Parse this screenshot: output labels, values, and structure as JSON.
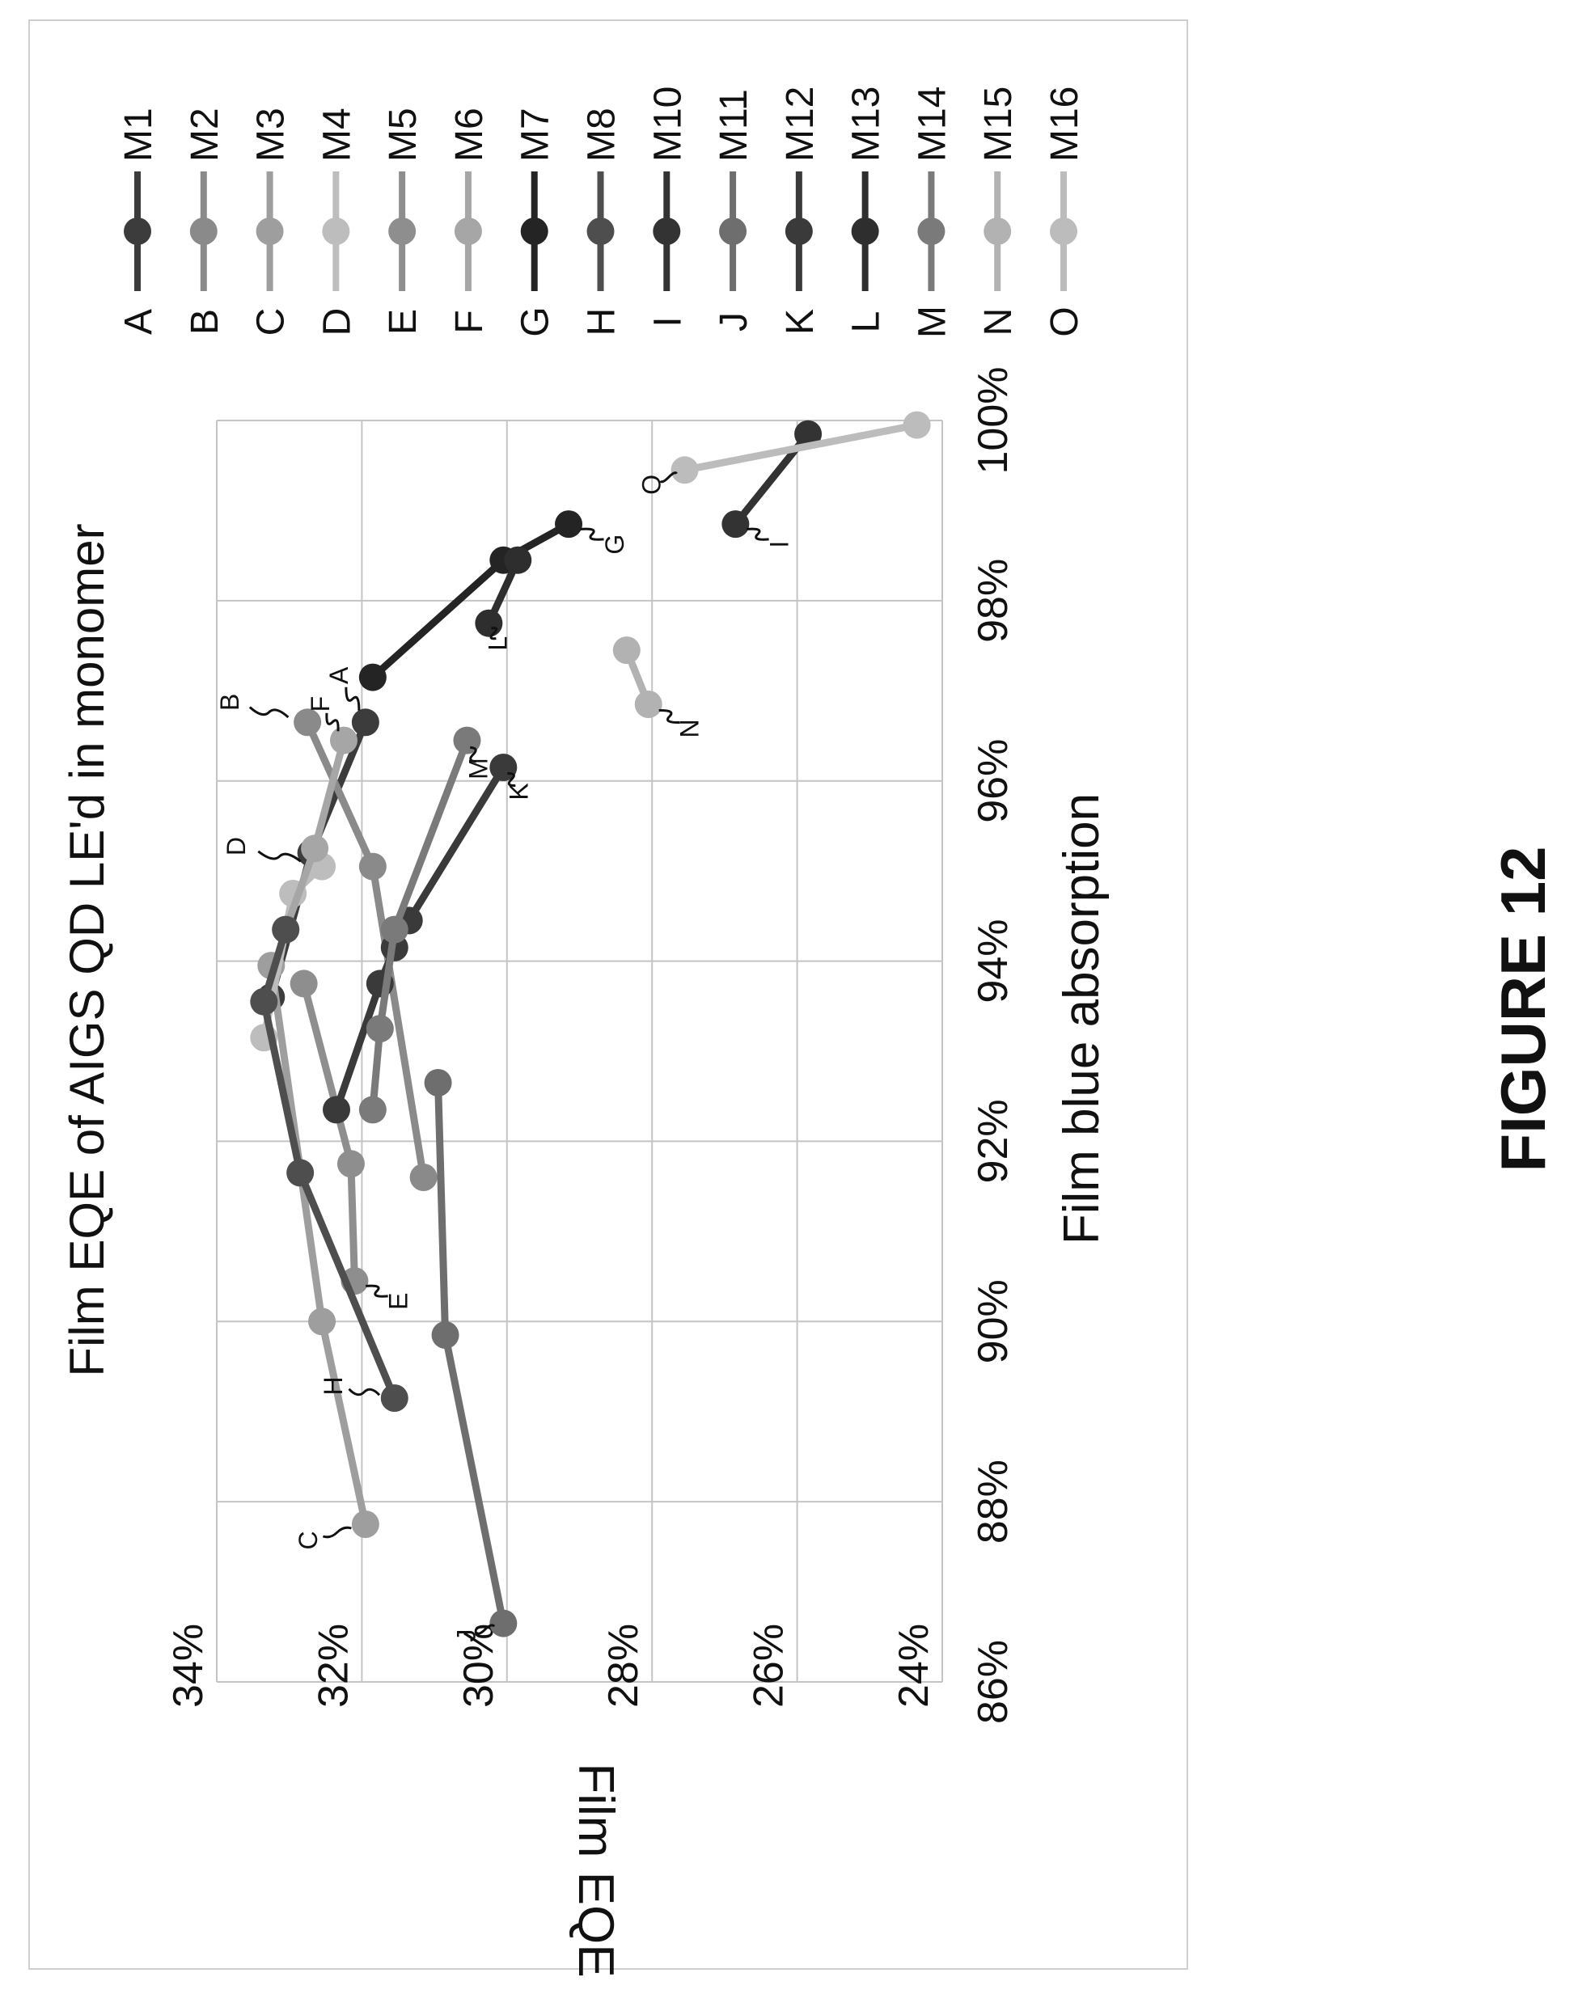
{
  "chart_data": {
    "type": "line",
    "title": "Film EQE of AIGS QD LE'd in monomer",
    "xlabel": "Film blue absorption",
    "ylabel": "Film EQE",
    "xlim": [
      0.86,
      1.0
    ],
    "ylim": [
      0.24,
      0.34
    ],
    "x_ticks": [
      "86%",
      "88%",
      "90%",
      "92%",
      "94%",
      "96%",
      "98%",
      "100%"
    ],
    "y_ticks": [
      "24%",
      "26%",
      "28%",
      "30%",
      "32%",
      "34%"
    ],
    "grid": true,
    "legend_position": "right",
    "series": [
      {
        "letter": "A",
        "name": "M1",
        "color": "#3c3c3c",
        "x": [
          0.9665,
          0.952,
          0.936
        ],
        "y": [
          0.3195,
          0.327,
          0.3325
        ]
      },
      {
        "letter": "B",
        "name": "M2",
        "color": "#8a8a8a",
        "x": [
          0.9665,
          0.9505,
          0.916
        ],
        "y": [
          0.3275,
          0.3185,
          0.3115
        ]
      },
      {
        "letter": "C",
        "name": "M3",
        "color": "#9e9e9e",
        "x": [
          0.8775,
          0.9,
          0.9395
        ],
        "y": [
          0.3195,
          0.3255,
          0.3325
        ]
      },
      {
        "letter": "D",
        "name": "M4",
        "color": "#bdbdbd",
        "x": [
          0.9505,
          0.9475,
          0.9315
        ],
        "y": [
          0.3255,
          0.3295,
          0.3335
        ]
      },
      {
        "letter": "E",
        "name": "M5",
        "color": "#8e8e8e",
        "x": [
          0.9045,
          0.9175,
          0.9375
        ],
        "y": [
          0.321,
          0.3215,
          0.328
        ]
      },
      {
        "letter": "F",
        "name": "M6",
        "color": "#a6a6a6",
        "x": [
          0.9645,
          0.9525,
          0.9435
        ],
        "y": [
          0.3225,
          0.3265,
          0.3305
        ]
      },
      {
        "letter": "G",
        "name": "M7",
        "color": "#242424",
        "x": [
          0.9885,
          0.9845,
          0.9715
        ],
        "y": [
          0.2915,
          0.3005,
          0.3185
        ]
      },
      {
        "letter": "H",
        "name": "M8",
        "color": "#4e4e4e",
        "x": [
          0.8915,
          0.9165,
          0.9355,
          0.9435
        ],
        "y": [
          0.3155,
          0.3285,
          0.3335,
          0.3305
        ]
      },
      {
        "letter": "I",
        "name": "M10",
        "color": "#333333",
        "x": [
          0.9885,
          0.9985
        ],
        "y": [
          0.2685,
          0.2585
        ]
      },
      {
        "letter": "J",
        "name": "M11",
        "color": "#6e6e6e",
        "x": [
          0.8665,
          0.8985,
          0.9265
        ],
        "y": [
          0.3005,
          0.3085,
          0.3095
        ]
      },
      {
        "letter": "K",
        "name": "M12",
        "color": "#3a3a3a",
        "x": [
          0.9615,
          0.9445,
          0.9415,
          0.9375,
          0.9235
        ],
        "y": [
          0.3005,
          0.3135,
          0.3155,
          0.3175,
          0.3235
        ]
      },
      {
        "letter": "L",
        "name": "M13",
        "color": "#2e2e2e",
        "x": [
          0.9775,
          0.9845
        ],
        "y": [
          0.3025,
          0.2985
        ]
      },
      {
        "letter": "M",
        "name": "M14",
        "color": "#7a7a7a",
        "x": [
          0.9645,
          0.9435,
          0.9325,
          0.9235
        ],
        "y": [
          0.3055,
          0.3155,
          0.3175,
          0.3185
        ]
      },
      {
        "letter": "N",
        "name": "M15",
        "color": "#b2b2b2",
        "x": [
          0.9685,
          0.9745
        ],
        "y": [
          0.2805,
          0.2835
        ]
      },
      {
        "letter": "O",
        "name": "M16",
        "color": "#bcbcbc",
        "x": [
          0.9945,
          0.9995
        ],
        "y": [
          0.2755,
          0.2435
        ]
      }
    ],
    "annotations": [
      "A",
      "B",
      "C",
      "D",
      "E",
      "F",
      "G",
      "H",
      "I",
      "J",
      "K",
      "L",
      "M",
      "N",
      "O"
    ]
  },
  "figure_caption": "FIGURE 12"
}
